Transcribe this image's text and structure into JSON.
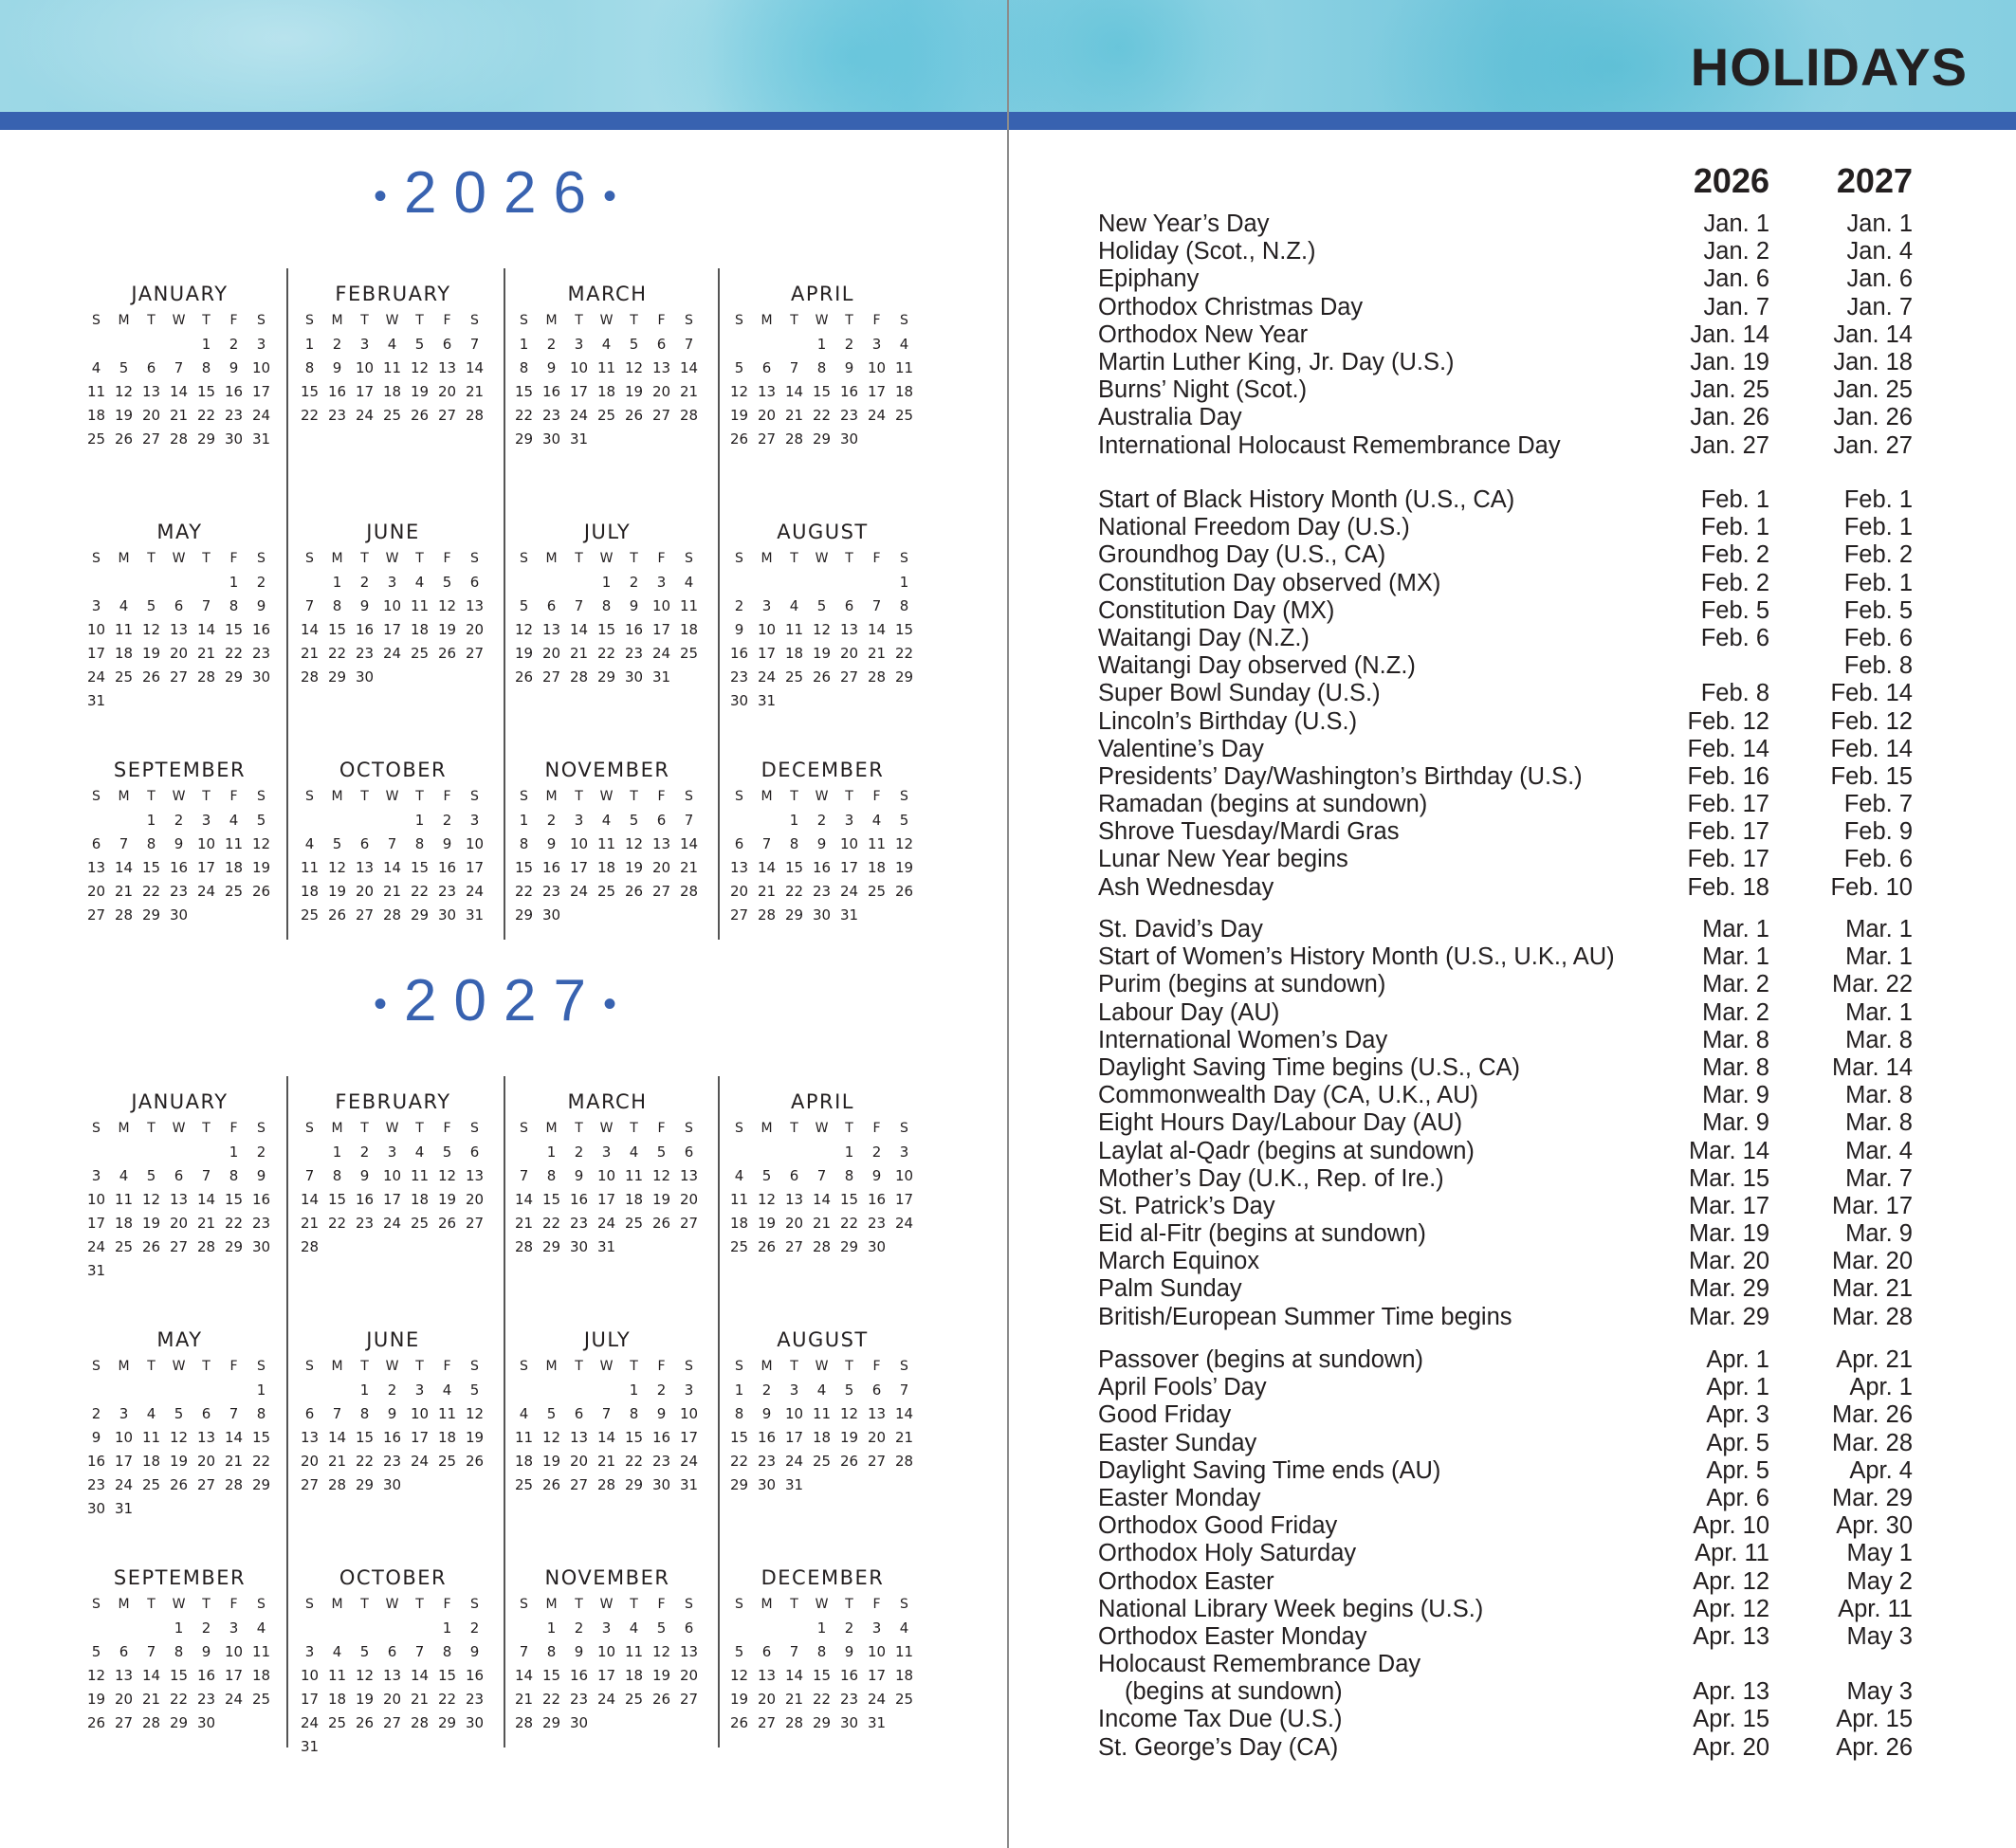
{
  "header": {
    "title": "HOLIDAYS"
  },
  "colors": {
    "accent_blue": "#3862b0",
    "watercolor": "#8fd3e3"
  },
  "calendar": {
    "weekdays": [
      "S",
      "M",
      "T",
      "W",
      "T",
      "F",
      "S"
    ],
    "months": [
      "JANUARY",
      "FEBRUARY",
      "MARCH",
      "APRIL",
      "MAY",
      "JUNE",
      "JULY",
      "AUGUST",
      "SEPTEMBER",
      "OCTOBER",
      "NOVEMBER",
      "DECEMBER"
    ],
    "years": [
      {
        "label": "2026",
        "year": 2026
      },
      {
        "label": "2027",
        "year": 2027
      }
    ]
  },
  "holidays": {
    "columns": [
      "2026",
      "2027"
    ],
    "groups": [
      [
        {
          "name": "New Year’s Day",
          "d2026": "Jan. 1",
          "d2027": "Jan. 1"
        },
        {
          "name": "Holiday (Scot., N.Z.)",
          "d2026": "Jan. 2",
          "d2027": "Jan. 4"
        },
        {
          "name": "Epiphany",
          "d2026": "Jan. 6",
          "d2027": "Jan. 6"
        },
        {
          "name": "Orthodox Christmas Day",
          "d2026": "Jan. 7",
          "d2027": "Jan. 7"
        },
        {
          "name": "Orthodox New Year",
          "d2026": "Jan. 14",
          "d2027": "Jan. 14"
        },
        {
          "name": "Martin Luther King, Jr. Day (U.S.)",
          "d2026": "Jan. 19",
          "d2027": "Jan. 18"
        },
        {
          "name": "Burns’ Night (Scot.)",
          "d2026": "Jan. 25",
          "d2027": "Jan. 25"
        },
        {
          "name": "Australia Day",
          "d2026": "Jan. 26",
          "d2027": "Jan. 26"
        },
        {
          "name": "International Holocaust Remembrance Day",
          "d2026": "Jan. 27",
          "d2027": "Jan. 27"
        }
      ],
      [
        {
          "name": "Start of Black History Month (U.S., CA)",
          "d2026": "Feb. 1",
          "d2027": "Feb. 1"
        },
        {
          "name": "National Freedom Day (U.S.)",
          "d2026": "Feb. 1",
          "d2027": "Feb. 1"
        },
        {
          "name": "Groundhog Day (U.S., CA)",
          "d2026": "Feb. 2",
          "d2027": "Feb. 2"
        },
        {
          "name": "Constitution Day observed (MX)",
          "d2026": "Feb. 2",
          "d2027": "Feb. 1"
        },
        {
          "name": "Constitution Day (MX)",
          "d2026": "Feb. 5",
          "d2027": "Feb. 5"
        },
        {
          "name": "Waitangi Day (N.Z.)",
          "d2026": "Feb. 6",
          "d2027": "Feb. 6"
        },
        {
          "name": "Waitangi Day observed (N.Z.)",
          "d2026": "",
          "d2027": "Feb. 8"
        },
        {
          "name": "Super Bowl Sunday (U.S.)",
          "d2026": "Feb. 8",
          "d2027": "Feb. 14"
        },
        {
          "name": "Lincoln’s Birthday (U.S.)",
          "d2026": "Feb. 12",
          "d2027": "Feb. 12"
        },
        {
          "name": "Valentine’s Day",
          "d2026": "Feb. 14",
          "d2027": "Feb. 14"
        },
        {
          "name": "Presidents’ Day/Washington’s Birthday (U.S.)",
          "d2026": "Feb. 16",
          "d2027": "Feb. 15"
        },
        {
          "name": "Ramadan (begins at sundown)",
          "d2026": "Feb. 17",
          "d2027": "Feb. 7"
        },
        {
          "name": "Shrove Tuesday/Mardi Gras",
          "d2026": "Feb. 17",
          "d2027": "Feb. 9"
        },
        {
          "name": "Lunar New Year begins",
          "d2026": "Feb. 17",
          "d2027": "Feb. 6"
        },
        {
          "name": "Ash Wednesday",
          "d2026": "Feb. 18",
          "d2027": "Feb. 10"
        }
      ],
      [
        {
          "name": "St. David’s Day",
          "d2026": "Mar. 1",
          "d2027": "Mar. 1"
        },
        {
          "name": "Start of Women’s History Month (U.S., U.K., AU)",
          "d2026": "Mar. 1",
          "d2027": "Mar. 1"
        },
        {
          "name": "Purim (begins at sundown)",
          "d2026": "Mar. 2",
          "d2027": "Mar. 22"
        },
        {
          "name": "Labour Day (AU)",
          "d2026": "Mar. 2",
          "d2027": "Mar. 1"
        },
        {
          "name": "International Women’s Day",
          "d2026": "Mar. 8",
          "d2027": "Mar. 8"
        },
        {
          "name": "Daylight Saving Time begins (U.S., CA)",
          "d2026": "Mar. 8",
          "d2027": "Mar. 14"
        },
        {
          "name": "Commonwealth Day (CA, U.K., AU)",
          "d2026": "Mar. 9",
          "d2027": "Mar. 8"
        },
        {
          "name": "Eight Hours Day/Labour Day (AU)",
          "d2026": "Mar. 9",
          "d2027": "Mar. 8"
        },
        {
          "name": "Laylat al-Qadr (begins at sundown)",
          "d2026": "Mar. 14",
          "d2027": "Mar. 4"
        },
        {
          "name": "Mother’s Day (U.K., Rep. of Ire.)",
          "d2026": "Mar. 15",
          "d2027": "Mar. 7"
        },
        {
          "name": "St. Patrick’s Day",
          "d2026": "Mar. 17",
          "d2027": "Mar. 17"
        },
        {
          "name": "Eid al-Fitr (begins at sundown)",
          "d2026": "Mar. 19",
          "d2027": "Mar. 9"
        },
        {
          "name": "March Equinox",
          "d2026": "Mar. 20",
          "d2027": "Mar. 20"
        },
        {
          "name": "Palm Sunday",
          "d2026": "Mar. 29",
          "d2027": "Mar. 21"
        },
        {
          "name": "British/European Summer Time begins",
          "d2026": "Mar. 29",
          "d2027": "Mar. 28"
        }
      ],
      [
        {
          "name": "Passover (begins at sundown)",
          "d2026": "Apr. 1",
          "d2027": "Apr. 21"
        },
        {
          "name": "April Fools’ Day",
          "d2026": "Apr. 1",
          "d2027": "Apr. 1"
        },
        {
          "name": "Good Friday",
          "d2026": "Apr. 3",
          "d2027": "Mar. 26"
        },
        {
          "name": "Easter Sunday",
          "d2026": "Apr. 5",
          "d2027": "Mar. 28"
        },
        {
          "name": "Daylight Saving Time ends (AU)",
          "d2026": "Apr. 5",
          "d2027": "Apr. 4"
        },
        {
          "name": "Easter Monday",
          "d2026": "Apr. 6",
          "d2027": "Mar. 29"
        },
        {
          "name": "Orthodox Good Friday",
          "d2026": "Apr. 10",
          "d2027": "Apr. 30"
        },
        {
          "name": "Orthodox Holy Saturday",
          "d2026": "Apr. 11",
          "d2027": "May 1"
        },
        {
          "name": "Orthodox Easter",
          "d2026": "Apr. 12",
          "d2027": "May 2"
        },
        {
          "name": "National Library Week begins (U.S.)",
          "d2026": "Apr. 12",
          "d2027": "Apr. 11"
        },
        {
          "name": "Orthodox Easter Monday",
          "d2026": "Apr. 13",
          "d2027": "May 3"
        },
        {
          "name": "Holocaust Remembrance Day",
          "cont": "(begins at sundown)",
          "d2026": "Apr. 13",
          "d2027": "May 3"
        },
        {
          "name": "Income Tax Due (U.S.)",
          "d2026": "Apr. 15",
          "d2027": "Apr. 15"
        },
        {
          "name": "St. George’s Day (CA)",
          "d2026": "Apr. 20",
          "d2027": "Apr. 26"
        }
      ]
    ]
  }
}
